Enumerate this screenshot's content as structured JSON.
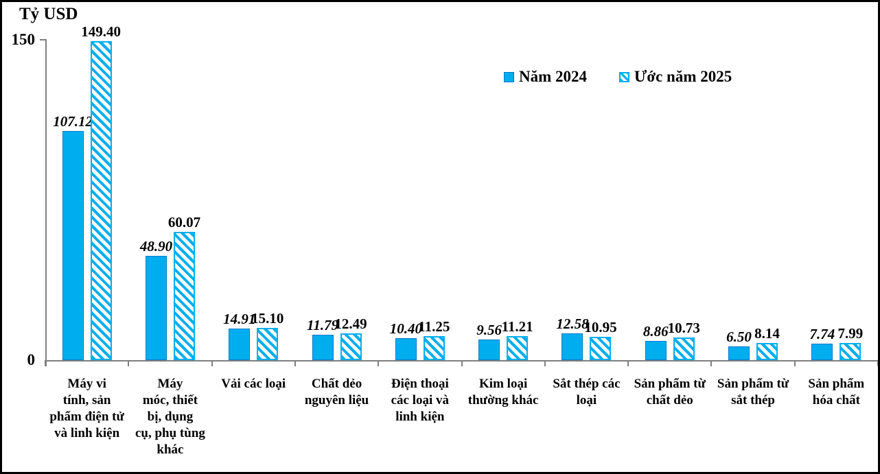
{
  "chart": {
    "title": "Tỷ USD",
    "y_axis_ticks": {
      "max_label": "150",
      "zero_label": "0"
    },
    "legend": [
      {
        "label": "Năm 2024",
        "style": "solid"
      },
      {
        "label": "Ước năm 2025",
        "style": "hatched"
      }
    ],
    "colors": {
      "bar_fill": "#00AEEF",
      "bar_border": "#0077C8",
      "axis": "#7F7F7F",
      "text": "#000000"
    }
  },
  "chart_data": {
    "type": "bar",
    "title": "Tỷ USD",
    "unit": "Tỷ USD",
    "categories": [
      "Máy vi\ntính, sản\nphẩm điện tử\nvà linh kiện",
      "Máy\nmóc, thiết\nbị, dụng\ncụ, phụ tùng\nkhác",
      "Vải các loại",
      "Chất dẻo\nnguyên liệu",
      "Điện thoại\ncác loại và\nlinh kiện",
      "Kim loại\nthường khác",
      "Sắt thép các\nloại",
      "Sản phẩm từ\nchất dẻo",
      "Sản phẩm từ\nsắt thép",
      "Sản phẩm\nhóa chất"
    ],
    "series": [
      {
        "name": "Năm 2024",
        "pattern": "solid",
        "values": [
          107.12,
          48.9,
          14.91,
          11.79,
          10.4,
          9.56,
          12.58,
          8.86,
          6.5,
          7.74
        ]
      },
      {
        "name": "Ước năm 2025",
        "pattern": "hatched-diagonal",
        "values": [
          149.4,
          60.07,
          15.1,
          12.49,
          11.25,
          11.21,
          10.95,
          10.73,
          8.14,
          7.99
        ]
      }
    ],
    "value_label_format": "2-decimals",
    "value_label_styles": [
      "bold-italic",
      "bold"
    ],
    "ylim": [
      0,
      150
    ],
    "y_ticks_shown": [
      0,
      150
    ],
    "grid": false,
    "legend_position": "top-center-right"
  }
}
